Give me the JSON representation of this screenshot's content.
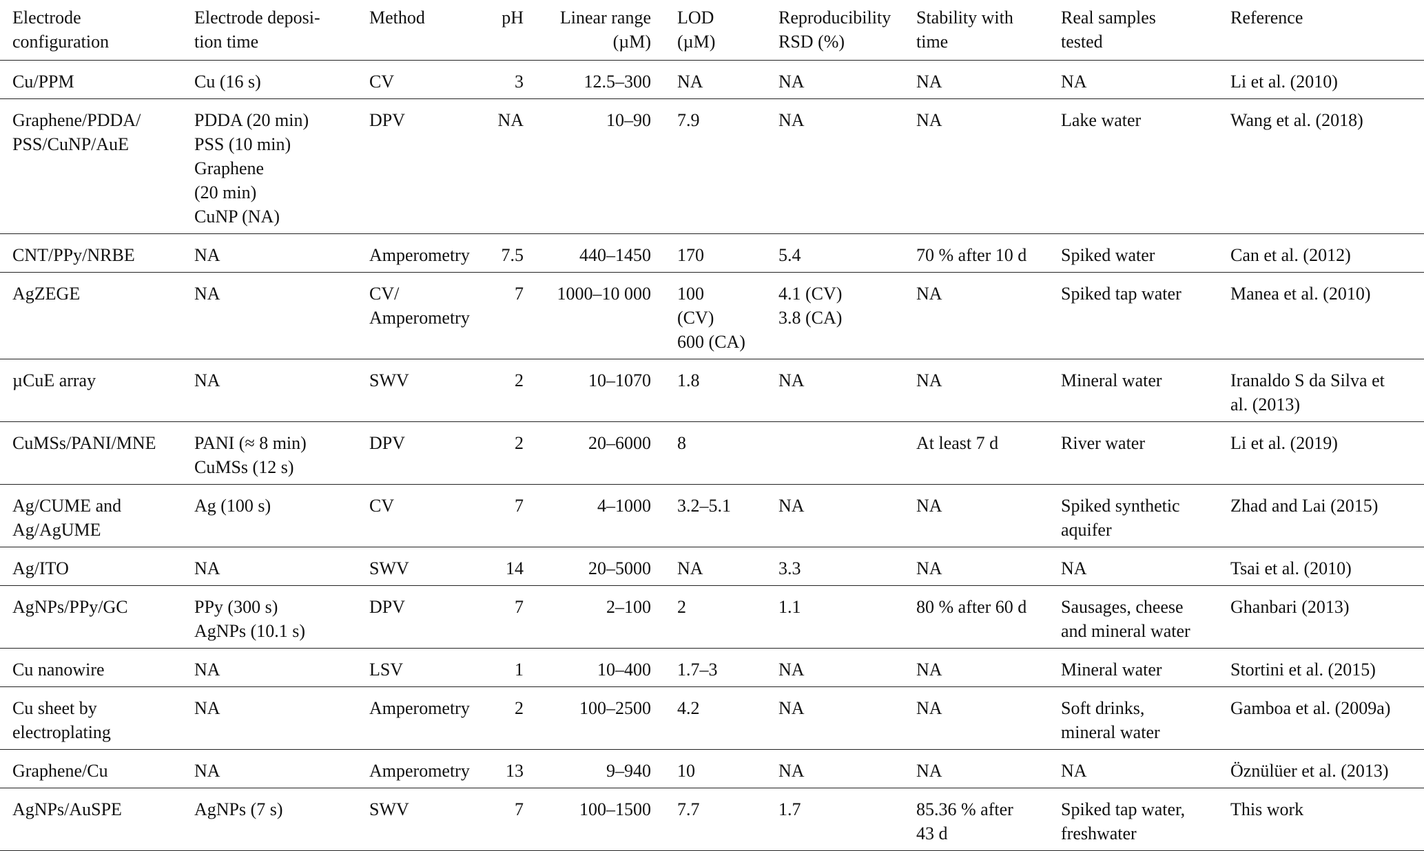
{
  "table": {
    "header": [
      "Electrode\nconfiguration",
      "Electrode deposi-\ntion time",
      "Method",
      "pH",
      "Linear range\n(µM)",
      "LOD\n(µM)",
      "Reproducibility\nRSD (%)",
      "Stability with\ntime",
      "Real samples\ntested",
      "Reference"
    ],
    "rows": [
      [
        "Cu/PPM",
        "Cu (16 s)",
        "CV",
        "3",
        "12.5–300",
        "NA",
        "NA",
        "NA",
        "NA",
        "Li et al. (2010)"
      ],
      [
        "Graphene/PDDA/\nPSS/CuNP/AuE",
        "PDDA (20 min)\nPSS (10 min)\nGraphene\n(20 min)\nCuNP (NA)",
        "DPV",
        "NA",
        "10–90",
        "7.9",
        "NA",
        "NA",
        "Lake water",
        "Wang et al. (2018)"
      ],
      [
        "CNT/PPy/NRBE",
        "NA",
        "Amperometry",
        "7.5",
        "440–1450",
        "170",
        "5.4",
        "70 % after 10 d",
        "Spiked water",
        "Can et al. (2012)"
      ],
      [
        "AgZEGE",
        "NA",
        "CV/\nAmperometry",
        "7",
        "1000–10 000",
        "100\n(CV)\n600 (CA)",
        "4.1 (CV)\n3.8 (CA)",
        "NA",
        "Spiked tap water",
        "Manea et al. (2010)"
      ],
      [
        "µCuE array",
        "NA",
        "SWV",
        "2",
        "10–1070",
        "1.8",
        "NA",
        "NA",
        "Mineral water",
        "Iranaldo S da Silva et\nal. (2013)"
      ],
      [
        "CuMSs/PANI/MNE",
        "PANI (≈ 8 min)\nCuMSs (12 s)",
        "DPV",
        "2",
        "20–6000",
        "8",
        null,
        "At least 7 d",
        "River water",
        "Li et al. (2019)"
      ],
      [
        "Ag/CUME and\nAg/AgUME",
        "Ag (100 s)",
        "CV",
        "7",
        "4–1000",
        "3.2–5.1",
        "NA",
        "NA",
        "Spiked synthetic\naquifer",
        "Zhad and Lai (2015)"
      ],
      [
        "Ag/ITO",
        "NA",
        "SWV",
        "14",
        "20–5000",
        "NA",
        "3.3",
        "NA",
        "NA",
        "Tsai et al. (2010)"
      ],
      [
        "AgNPs/PPy/GC",
        "PPy (300 s)\nAgNPs (10.1 s)",
        "DPV",
        "7",
        "2–100",
        "2",
        "1.1",
        "80 % after 60 d",
        "Sausages, cheese\nand mineral water",
        "Ghanbari (2013)"
      ],
      [
        "Cu nanowire",
        "NA",
        "LSV",
        "1",
        "10–400",
        "1.7–3",
        "NA",
        "NA",
        "Mineral water",
        "Stortini et al. (2015)"
      ],
      [
        "Cu sheet by\nelectroplating",
        "NA",
        "Amperometry",
        "2",
        "100–2500",
        "4.2",
        "NA",
        "NA",
        "Soft drinks,\nmineral water",
        "Gamboa et al. (2009a)"
      ],
      [
        "Graphene/Cu",
        "NA",
        "Amperometry",
        "13",
        "9–940",
        "10",
        "NA",
        "NA",
        "NA",
        "Öznülüer et al. (2013)"
      ],
      [
        "AgNPs/AuSPE",
        "AgNPs (7 s)",
        "SWV",
        "7",
        "100–1500",
        "7.7",
        "1.7",
        "85.36 % after\n43 d",
        "Spiked tap water,\nfreshwater",
        "This work"
      ]
    ]
  }
}
